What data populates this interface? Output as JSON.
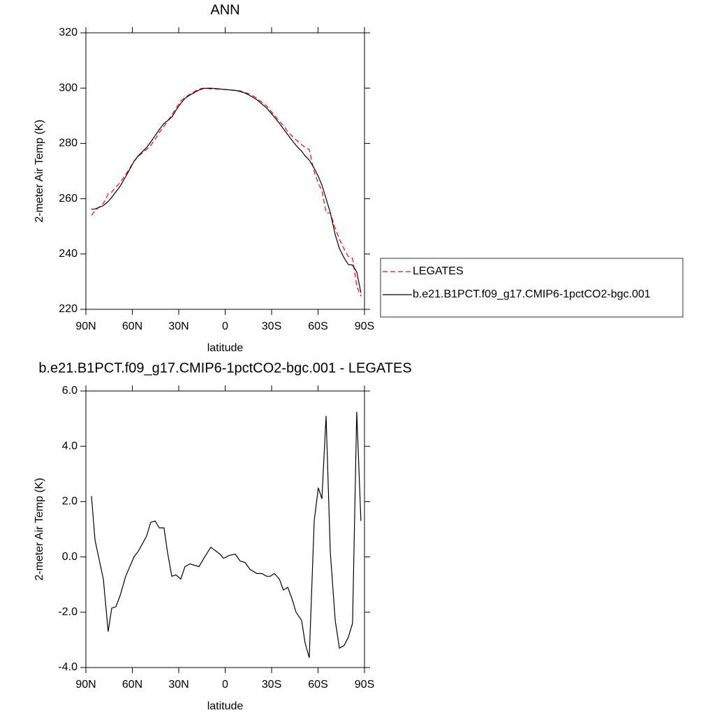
{
  "chart_data": [
    {
      "type": "line",
      "title": "ANN",
      "x_label": "latitude",
      "y_label": "2-meter Air Temp (K)",
      "x": [
        86.4,
        84.1,
        78.7,
        75.6,
        73.3,
        70.6,
        67.9,
        64.3,
        58.9,
        56.2,
        50.8,
        48.1,
        45.3,
        42.6,
        39.5,
        37.2,
        34.5,
        31.8,
        28.7,
        26.0,
        22.8,
        16.9,
        13.8,
        9.3,
        3.4,
        1.1,
        -2.5,
        -6.5,
        -9.7,
        -12.8,
        -16.0,
        -20.5,
        -23.7,
        -26.8,
        -29.1,
        -31.8,
        -35.0,
        -37.6,
        -40.4,
        -43.1,
        -45.8,
        -49.4,
        -51.6,
        -54.3,
        -57.5,
        -60.2,
        -62.5,
        -65.2,
        -67.9,
        -71.1,
        -73.8,
        -76.9,
        -79.6,
        -82.3,
        -85.0,
        -87.7
      ],
      "series": [
        {
          "name": "LEGATES",
          "color": "#ff0000",
          "line_style": "dashed",
          "values": [
            254.0,
            255.7,
            258.3,
            261.7,
            262.4,
            264.3,
            265.9,
            268.7,
            273.5,
            275.3,
            277.8,
            279.3,
            281.5,
            284.0,
            286.2,
            288.1,
            290.2,
            292.7,
            295.3,
            296.7,
            297.8,
            299.7,
            300.0,
            299.7,
            299.6,
            299.6,
            299.4,
            299.1,
            299.0,
            298.4,
            297.8,
            296.4,
            294.9,
            293.5,
            292.0,
            290.1,
            288.1,
            286.5,
            284.3,
            282.7,
            281.3,
            279.5,
            278.6,
            277.7,
            269.7,
            265.5,
            262.9,
            254.9,
            254.8,
            249.3,
            245.3,
            241.7,
            239.1,
            238.4,
            228.3,
            224.7
          ]
        },
        {
          "name": "b.e21.B1PCT.f09_g17.CMIP6-1pctCO2-bgc.001",
          "color": "#000000",
          "line_style": "solid",
          "values": [
            256.2,
            256.3,
            257.5,
            259.0,
            260.5,
            262.5,
            264.5,
            268.0,
            273.5,
            275.5,
            278.5,
            280.5,
            282.8,
            285.0,
            287.2,
            288.2,
            289.5,
            292.0,
            294.5,
            296.3,
            297.5,
            299.3,
            299.9,
            300.0,
            299.7,
            299.5,
            299.4,
            299.2,
            298.8,
            298.2,
            297.3,
            295.8,
            294.3,
            292.8,
            291.3,
            289.5,
            287.3,
            285.3,
            283.2,
            281.2,
            279.3,
            277.2,
            275.5,
            274.0,
            271.0,
            268.0,
            265.0,
            260.0,
            255.0,
            247.0,
            242.0,
            238.5,
            236.2,
            236.0,
            233.5,
            226.0
          ]
        }
      ],
      "xlim": [
        90,
        -90
      ],
      "xticks": [
        {
          "value": 90,
          "label": "90N"
        },
        {
          "value": 60,
          "label": "60N"
        },
        {
          "value": 30,
          "label": "30N"
        },
        0,
        {
          "value": -30,
          "label": "30S"
        },
        {
          "value": -60,
          "label": "60S"
        },
        {
          "value": -90,
          "label": "90S"
        }
      ],
      "ylim": [
        220,
        320
      ],
      "yticks": [
        220,
        240,
        260,
        280,
        300,
        320
      ],
      "legend": "right"
    },
    {
      "type": "line",
      "title": "b.e21.B1PCT.f09_g17.CMIP6-1pctCO2-bgc.001 - LEGATES",
      "x_label": "latitude",
      "y_label": "2-meter Air Temp (K)",
      "x": [
        86.4,
        84.1,
        78.7,
        75.6,
        73.3,
        70.6,
        67.9,
        64.3,
        58.9,
        56.2,
        50.8,
        48.1,
        45.3,
        42.6,
        39.5,
        37.2,
        34.5,
        31.8,
        28.7,
        26.0,
        22.8,
        16.9,
        13.8,
        9.3,
        3.4,
        1.1,
        -2.5,
        -6.5,
        -9.7,
        -12.8,
        -16.0,
        -20.5,
        -23.7,
        -26.8,
        -29.1,
        -31.8,
        -35.0,
        -37.6,
        -40.4,
        -43.1,
        -45.8,
        -49.4,
        -51.6,
        -54.3,
        -57.5,
        -60.2,
        -62.5,
        -65.2,
        -67.9,
        -71.1,
        -73.8,
        -76.9,
        -79.6,
        -82.3,
        -85.0,
        -87.7
      ],
      "series": [
        {
          "color": "#000000",
          "line_style": "solid",
          "values": [
            2.2,
            0.6,
            -0.8,
            -2.7,
            -1.85,
            -1.8,
            -1.4,
            -0.7,
            0.0,
            0.2,
            0.75,
            1.25,
            1.3,
            1.05,
            1.05,
            0.15,
            -0.7,
            -0.65,
            -0.8,
            -0.35,
            -0.25,
            -0.35,
            -0.05,
            0.35,
            0.1,
            -0.05,
            0.05,
            0.1,
            -0.15,
            -0.2,
            -0.45,
            -0.6,
            -0.6,
            -0.7,
            -0.7,
            -0.6,
            -0.8,
            -1.2,
            -1.1,
            -1.5,
            -2.0,
            -2.3,
            -3.1,
            -3.65,
            1.3,
            2.5,
            2.1,
            5.1,
            0.2,
            -2.3,
            -3.3,
            -3.2,
            -2.9,
            -2.4,
            5.25,
            1.3
          ]
        }
      ],
      "xlim": [
        90,
        -90
      ],
      "xticks": [
        {
          "value": 90,
          "label": "90N"
        },
        {
          "value": 60,
          "label": "60N"
        },
        {
          "value": 30,
          "label": "30N"
        },
        0,
        {
          "value": -30,
          "label": "30S"
        },
        {
          "value": -60,
          "label": "60S"
        },
        {
          "value": -90,
          "label": "90S"
        }
      ],
      "ylim": [
        -4,
        6
      ],
      "yticks": [
        {
          "value": -4,
          "label": "-4.0"
        },
        {
          "value": -2,
          "label": "-2.0"
        },
        {
          "value": 0,
          "label": "0.0"
        },
        {
          "value": 2,
          "label": "2.0"
        },
        {
          "value": 4,
          "label": "4.0"
        },
        {
          "value": 6,
          "label": "6.0"
        }
      ]
    }
  ]
}
